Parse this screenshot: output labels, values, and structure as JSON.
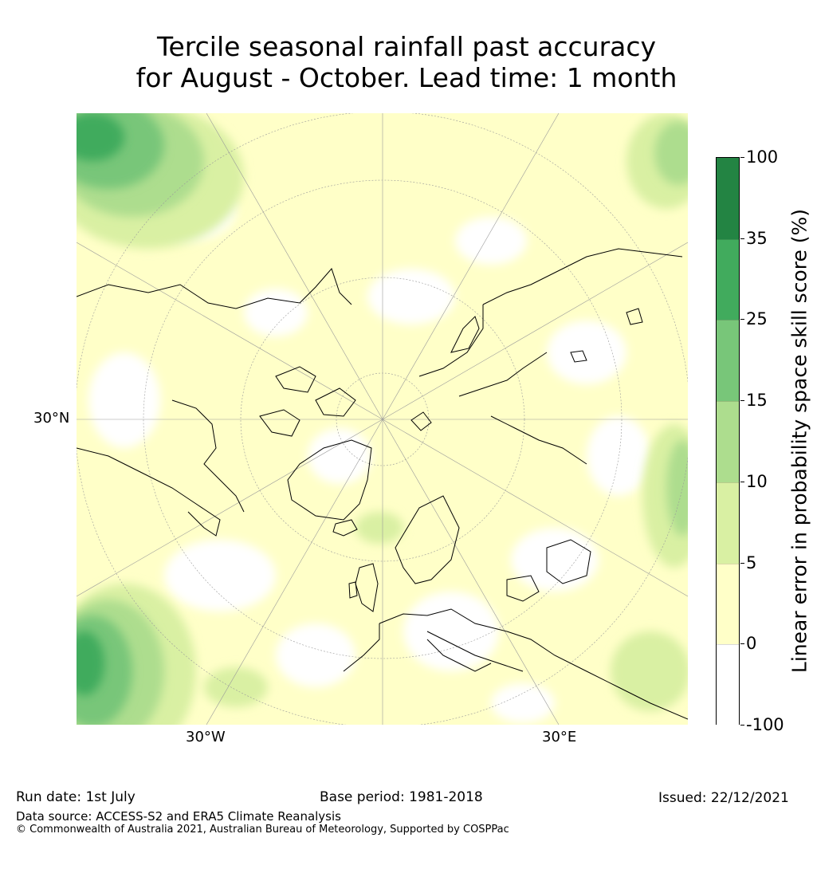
{
  "title": {
    "line1": "Tercile seasonal rainfall past accuracy",
    "line2": "for August - October. Lead time: 1 month"
  },
  "map": {
    "projection": "north polar stereographic",
    "lat_labels": [
      "30°N"
    ],
    "lon_labels": [
      "30°W",
      "30°E"
    ]
  },
  "colorbar": {
    "label": "Linear error in probability space skill score (%)",
    "ticks": [
      "100",
      "35",
      "25",
      "15",
      "10",
      "5",
      "0",
      "-100"
    ],
    "bins": [
      {
        "from": -100,
        "to": 0,
        "color": "#ffffff"
      },
      {
        "from": 0,
        "to": 5,
        "color": "#ffffc8"
      },
      {
        "from": 5,
        "to": 10,
        "color": "#d9f0a3"
      },
      {
        "from": 10,
        "to": 15,
        "color": "#addd8e"
      },
      {
        "from": 15,
        "to": 25,
        "color": "#78c679"
      },
      {
        "from": 25,
        "to": 35,
        "color": "#41ab5d"
      },
      {
        "from": 35,
        "to": 100,
        "color": "#238443"
      }
    ]
  },
  "footer": {
    "run_date": "Run date: 1st July",
    "base_period": "Base period: 1981-2018",
    "issued": "Issued: 22/12/2021",
    "data_source": "Data source: ACCESS-S2 and ERA5 Climate Reanalysis",
    "copyright": "© Commonwealth of Australia 2021, Australian Bureau of Meteorology, Supported by COSPPac"
  }
}
